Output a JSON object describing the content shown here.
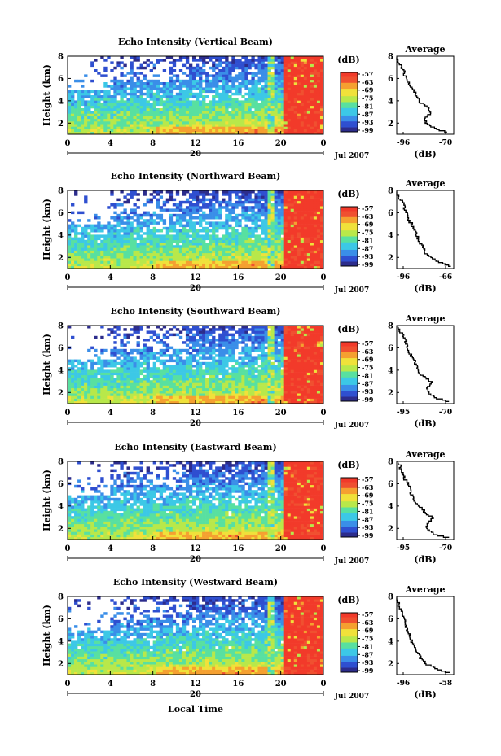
{
  "chart_data": [
    {
      "type": "heatmap",
      "title": "Echo Intensity (Vertical Beam)",
      "ylabel": "Height (km)",
      "x_ticks": [
        "0",
        "4",
        "8",
        "12",
        "16",
        "20",
        "0"
      ],
      "y_ticks": [
        "2",
        "4",
        "6",
        "8"
      ],
      "xlim": [
        0,
        24
      ],
      "ylim": [
        1,
        8
      ],
      "colorbar_label": "(dB)",
      "colorbar_ticks": [
        "-57",
        "-63",
        "-69",
        "-75",
        "-81",
        "-87",
        "-93",
        "-99"
      ],
      "date_label": "Jul 2007",
      "day_label": "20",
      "average": {
        "title": "Average",
        "xlabel": "(dB)",
        "x_ticks": [
          "-96",
          "-70"
        ],
        "xlim": [
          -96,
          -66
        ],
        "y_ticks": [
          "2",
          "4",
          "6",
          "8"
        ],
        "profile": {
          "h": [
            1.2,
            1.5,
            2.0,
            2.5,
            3.0,
            3.5,
            4.0,
            4.5,
            5.0,
            5.5,
            6.0,
            6.5,
            7.0,
            7.5,
            7.9
          ],
          "db": [
            -69,
            -75,
            -80,
            -82,
            -78,
            -80,
            -84,
            -86,
            -87,
            -89,
            -91,
            -92,
            -93,
            -95,
            -96
          ]
        }
      }
    },
    {
      "type": "heatmap",
      "title": "Echo Intensity (Northward Beam)",
      "ylabel": "Height (km)",
      "x_ticks": [
        "0",
        "4",
        "8",
        "12",
        "16",
        "20",
        "0"
      ],
      "y_ticks": [
        "2",
        "4",
        "6",
        "8"
      ],
      "xlim": [
        0,
        24
      ],
      "ylim": [
        1,
        8
      ],
      "colorbar_label": "(dB)",
      "colorbar_ticks": [
        "-57",
        "-63",
        "-69",
        "-75",
        "-81",
        "-87",
        "-93",
        "-99"
      ],
      "date_label": "Jul 2007",
      "day_label": "20",
      "average": {
        "title": "Average",
        "xlabel": "(dB)",
        "x_ticks": [
          "-96",
          "-66"
        ],
        "xlim": [
          -96,
          -66
        ],
        "y_ticks": [
          "2",
          "4",
          "6",
          "8"
        ],
        "profile": {
          "h": [
            1.2,
            1.5,
            2.0,
            2.5,
            3.0,
            3.5,
            4.0,
            4.5,
            5.0,
            5.5,
            6.0,
            6.5,
            7.0,
            7.5,
            7.9
          ],
          "db": [
            -67,
            -72,
            -78,
            -81,
            -82,
            -84,
            -85,
            -87,
            -88,
            -90,
            -91,
            -92,
            -93,
            -95,
            -96
          ]
        }
      }
    },
    {
      "type": "heatmap",
      "title": "Echo Intensity (Southward Beam)",
      "ylabel": "Height (km)",
      "x_ticks": [
        "0",
        "4",
        "8",
        "12",
        "16",
        "20",
        "0"
      ],
      "y_ticks": [
        "2",
        "4",
        "6",
        "8"
      ],
      "xlim": [
        0,
        24
      ],
      "ylim": [
        1,
        8
      ],
      "colorbar_label": "(dB)",
      "colorbar_ticks": [
        "-57",
        "-63",
        "-69",
        "-75",
        "-81",
        "-87",
        "-93",
        "-99"
      ],
      "date_label": "Jul 2007",
      "day_label": "20",
      "average": {
        "title": "Average",
        "xlabel": "(dB)",
        "x_ticks": [
          "-95",
          "-70"
        ],
        "xlim": [
          -96,
          -66
        ],
        "y_ticks": [
          "2",
          "4",
          "6",
          "8"
        ],
        "profile": {
          "h": [
            1.2,
            1.5,
            2.0,
            2.5,
            3.0,
            3.5,
            4.0,
            4.5,
            5.0,
            5.5,
            6.0,
            6.5,
            7.0,
            7.5,
            7.9
          ],
          "db": [
            -68,
            -74,
            -79,
            -80,
            -78,
            -82,
            -85,
            -86,
            -87,
            -89,
            -90,
            -91,
            -92,
            -94,
            -95
          ]
        }
      }
    },
    {
      "type": "heatmap",
      "title": "Echo Intensity (Eastward Beam)",
      "ylabel": "Height (km)",
      "x_ticks": [
        "0",
        "4",
        "8",
        "12",
        "16",
        "20",
        "0"
      ],
      "y_ticks": [
        "2",
        "4",
        "6",
        "8"
      ],
      "xlim": [
        0,
        24
      ],
      "ylim": [
        1,
        8
      ],
      "colorbar_label": "(dB)",
      "colorbar_ticks": [
        "-57",
        "-63",
        "-69",
        "-75",
        "-81",
        "-87",
        "-93",
        "-99"
      ],
      "date_label": "Jul 2007",
      "day_label": "20",
      "average": {
        "title": "Average",
        "xlabel": "(dB)",
        "x_ticks": [
          "-95",
          "-70"
        ],
        "xlim": [
          -96,
          -66
        ],
        "y_ticks": [
          "2",
          "4",
          "6",
          "8"
        ],
        "profile": {
          "h": [
            1.2,
            1.5,
            2.0,
            2.5,
            3.0,
            3.5,
            4.0,
            4.5,
            5.0,
            5.5,
            6.0,
            6.5,
            7.0,
            7.5,
            7.9
          ],
          "db": [
            -68,
            -76,
            -80,
            -80,
            -77,
            -81,
            -84,
            -86,
            -88,
            -89,
            -90,
            -92,
            -93,
            -94,
            -95
          ]
        }
      }
    },
    {
      "type": "heatmap",
      "title": "Echo Intensity (Westward Beam)",
      "ylabel": "Height (km)",
      "xlabel": "Local Time",
      "x_ticks": [
        "0",
        "4",
        "8",
        "12",
        "16",
        "20",
        "0"
      ],
      "y_ticks": [
        "2",
        "4",
        "6",
        "8"
      ],
      "xlim": [
        0,
        24
      ],
      "ylim": [
        1,
        8
      ],
      "colorbar_label": "(dB)",
      "colorbar_ticks": [
        "-57",
        "-63",
        "-69",
        "-75",
        "-81",
        "-87",
        "-93",
        "-99"
      ],
      "date_label": "Jul 2007",
      "day_label": "20",
      "average": {
        "title": "Average",
        "xlabel": "(dB)",
        "x_ticks": [
          "-96",
          "-58"
        ],
        "xlim": [
          -96,
          -58
        ],
        "y_ticks": [
          "2",
          "4",
          "6",
          "8"
        ],
        "profile": {
          "h": [
            1.2,
            1.5,
            2.0,
            2.5,
            3.0,
            3.5,
            4.0,
            4.5,
            5.0,
            5.5,
            6.0,
            6.5,
            7.0,
            7.5,
            7.9
          ],
          "db": [
            -60,
            -68,
            -76,
            -80,
            -82,
            -84,
            -86,
            -87,
            -89,
            -90,
            -91,
            -92,
            -94,
            -95,
            -96
          ]
        }
      }
    }
  ],
  "colors": {
    "scale": [
      "#2c2c8c",
      "#2f4fd0",
      "#3a8ee8",
      "#3cc8e6",
      "#58e0a0",
      "#b8e84a",
      "#f0e13a",
      "#f5a030",
      "#f05030",
      "#f23a2a"
    ],
    "axes": "#000000",
    "background": "#ffffff"
  }
}
